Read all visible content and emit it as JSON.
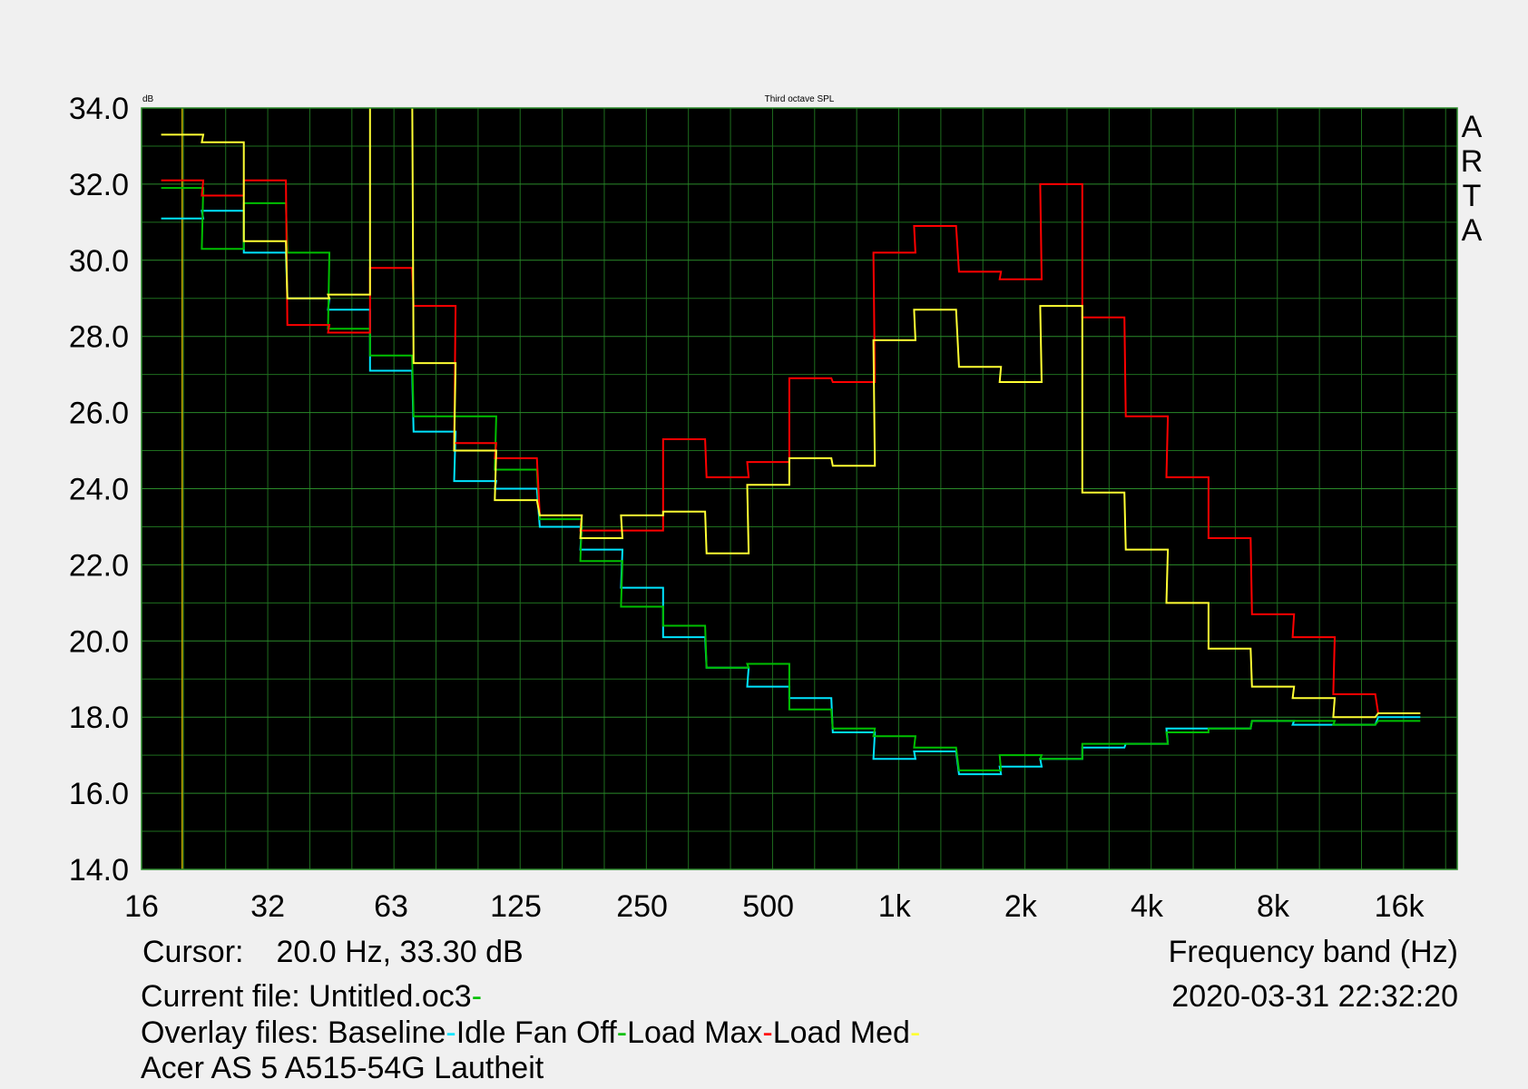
{
  "chart_data": {
    "type": "line",
    "title": "Third octave SPL",
    "ylabel": "dB",
    "xlabel": "Frequency band (Hz)",
    "ylim": [
      14.0,
      34.0
    ],
    "yticks": [
      "14.0",
      "16.0",
      "18.0",
      "20.0",
      "22.0",
      "24.0",
      "26.0",
      "28.0",
      "30.0",
      "32.0",
      "34.0"
    ],
    "y_tick_values": [
      14,
      16,
      18,
      20,
      22,
      24,
      26,
      28,
      30,
      32,
      34
    ],
    "xticks": [
      "16",
      "32",
      "63",
      "125",
      "250",
      "500",
      "1k",
      "2k",
      "4k",
      "8k",
      "16k"
    ],
    "x_tick_values": [
      16,
      32,
      63,
      125,
      250,
      500,
      1000,
      2000,
      4000,
      8000,
      16000
    ],
    "x_scale": "log",
    "grid": true,
    "background": "#000000",
    "grid_color": "#1e6e1e",
    "cursor_x": 20,
    "bands": [
      20,
      25,
      31.5,
      40,
      50,
      63,
      80,
      100,
      125,
      160,
      200,
      250,
      315,
      400,
      500,
      630,
      800,
      1000,
      1250,
      1600,
      2000,
      2500,
      3150,
      4000,
      5000,
      6300,
      8000,
      10000,
      12500,
      16000
    ],
    "series": [
      {
        "name": "Baseline",
        "color": "#00e5ff",
        "values": [
          31.1,
          31.3,
          30.2,
          29.0,
          28.7,
          27.1,
          25.5,
          24.2,
          24.0,
          23.0,
          22.4,
          21.4,
          20.1,
          19.3,
          18.8,
          18.5,
          17.6,
          16.9,
          17.1,
          16.5,
          16.7,
          16.9,
          17.2,
          17.3,
          17.7,
          17.7,
          17.9,
          17.8,
          17.8,
          18.0
        ]
      },
      {
        "name": "Idle Fan Off",
        "color": "#00c000",
        "values": [
          31.9,
          30.3,
          31.5,
          30.2,
          28.2,
          27.5,
          25.9,
          25.9,
          24.5,
          23.2,
          22.1,
          20.9,
          20.4,
          19.3,
          19.4,
          18.2,
          17.7,
          17.5,
          17.2,
          16.6,
          17.0,
          16.9,
          17.3,
          17.3,
          17.6,
          17.7,
          17.9,
          17.9,
          17.8,
          17.9
        ]
      },
      {
        "name": "Load Max",
        "color": "#ff0000",
        "values": [
          32.1,
          31.7,
          32.1,
          28.3,
          28.1,
          29.8,
          28.8,
          25.2,
          24.8,
          23.3,
          22.9,
          22.9,
          25.3,
          24.3,
          24.7,
          26.9,
          26.8,
          30.2,
          30.9,
          29.7,
          29.5,
          32.0,
          28.5,
          25.9,
          24.3,
          22.7,
          20.7,
          20.1,
          18.6,
          18.1
        ]
      },
      {
        "name": "Load Med",
        "color": "#ffff33",
        "values": [
          33.3,
          33.1,
          30.5,
          29.0,
          29.1,
          34.8,
          27.3,
          25.0,
          23.7,
          23.3,
          22.7,
          23.3,
          23.4,
          22.3,
          24.1,
          24.8,
          24.6,
          27.9,
          28.7,
          27.2,
          26.8,
          28.8,
          23.9,
          22.4,
          21.0,
          19.8,
          18.8,
          18.5,
          18.0,
          18.1
        ]
      }
    ]
  },
  "watermark": "ARTA",
  "info": {
    "cursor_label": "Cursor:",
    "cursor_value": "20.0 Hz, 33.30 dB",
    "freq_label": "Frequency band (Hz)",
    "current_file_label": "Current file: Untitled.oc3",
    "datetime": "2020-03-31  22:32:20",
    "overlay_prefix": "Overlay files: ",
    "overlays": [
      "Baseline",
      "Idle Fan Off",
      "Load Max",
      "Load Med"
    ],
    "description": "Acer AS 5 A515-54G Lautheit",
    "marker": "-"
  },
  "colors": {
    "current_marker": "#00c000",
    "overlay_markers": [
      "#00e5ff",
      "#00c000",
      "#ff0000",
      "#ffff33"
    ]
  }
}
